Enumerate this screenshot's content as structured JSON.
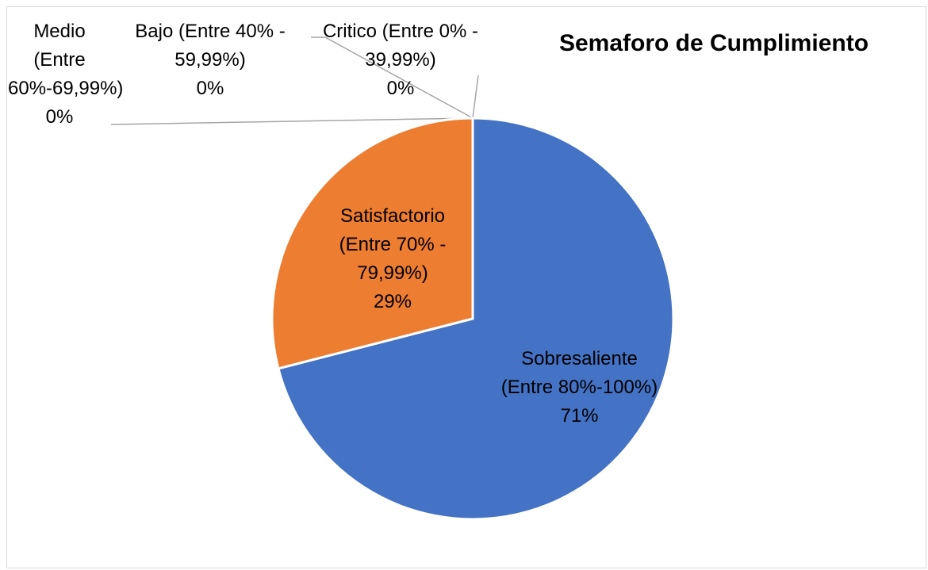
{
  "chart_data": {
    "type": "pie",
    "title": "Semaforo de Cumplimiento",
    "categories": [
      "Sobresaliente (Entre 80%-100%)",
      "Satisfactorio (Entre 70% - 79,99%)",
      "Medio (Entre 60%-69,99%)",
      "Bajo (Entre 40% - 59,99%)",
      "Critico (Entre 0% - 39,99%)"
    ],
    "values": [
      71,
      29,
      0,
      0,
      0
    ],
    "value_labels": [
      "71%",
      "29%",
      "0%",
      "0%",
      "0%"
    ],
    "colors": [
      "#4472c4",
      "#ed7d31",
      "#a5a5a5",
      "#ffc000",
      "#5b9bd5"
    ]
  }
}
